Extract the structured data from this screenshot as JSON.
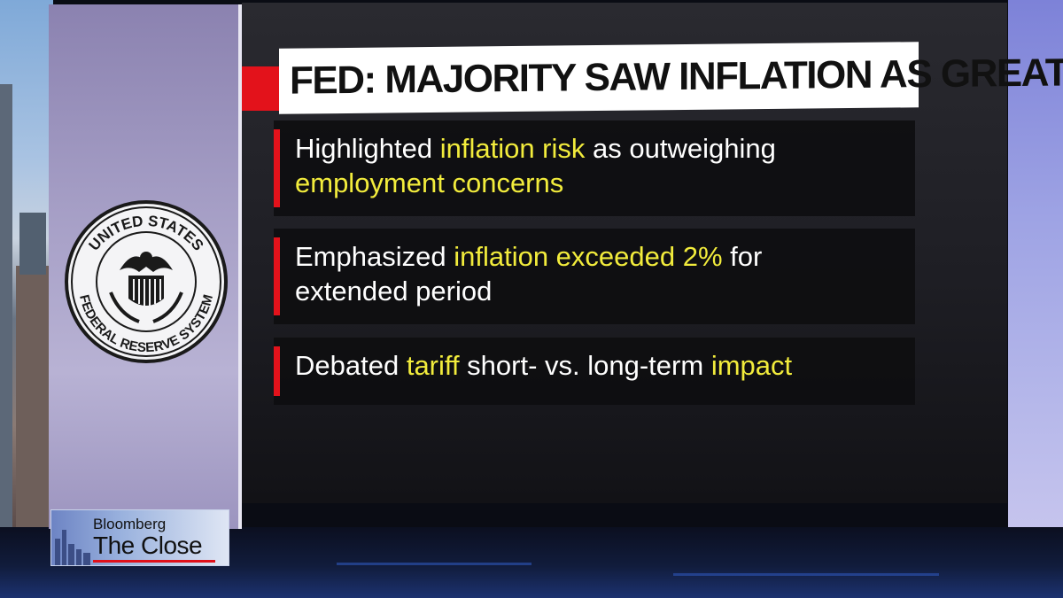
{
  "headline": "FED: MAJORITY SAW INFLATION AS GREATER RISK",
  "bullets": [
    {
      "lines": [
        [
          {
            "t": "Highlighted ",
            "hl": false
          },
          {
            "t": "inflation risk",
            "hl": true
          },
          {
            "t": " as outweighing",
            "hl": false
          }
        ],
        [
          {
            "t": "employment concerns",
            "hl": true
          }
        ]
      ]
    },
    {
      "lines": [
        [
          {
            "t": "Emphasized ",
            "hl": false
          },
          {
            "t": "inflation exceeded 2%",
            "hl": true
          },
          {
            "t": " for",
            "hl": false
          }
        ],
        [
          {
            "t": "extended period",
            "hl": false
          }
        ]
      ]
    },
    {
      "lines": [
        [
          {
            "t": "Debated ",
            "hl": false
          },
          {
            "t": "tariff",
            "hl": true
          },
          {
            "t": " short- vs. long-term ",
            "hl": false
          },
          {
            "t": "impact",
            "hl": true
          }
        ]
      ]
    }
  ],
  "seal": {
    "top_text": "UNITED STATES",
    "bottom_text": "FEDERAL RESERVE SYSTEM"
  },
  "logo": {
    "brand": "Bloomberg",
    "show": "The Close"
  },
  "colors": {
    "accent_red": "#e3121b",
    "highlight_yellow": "#f2ec3c"
  }
}
